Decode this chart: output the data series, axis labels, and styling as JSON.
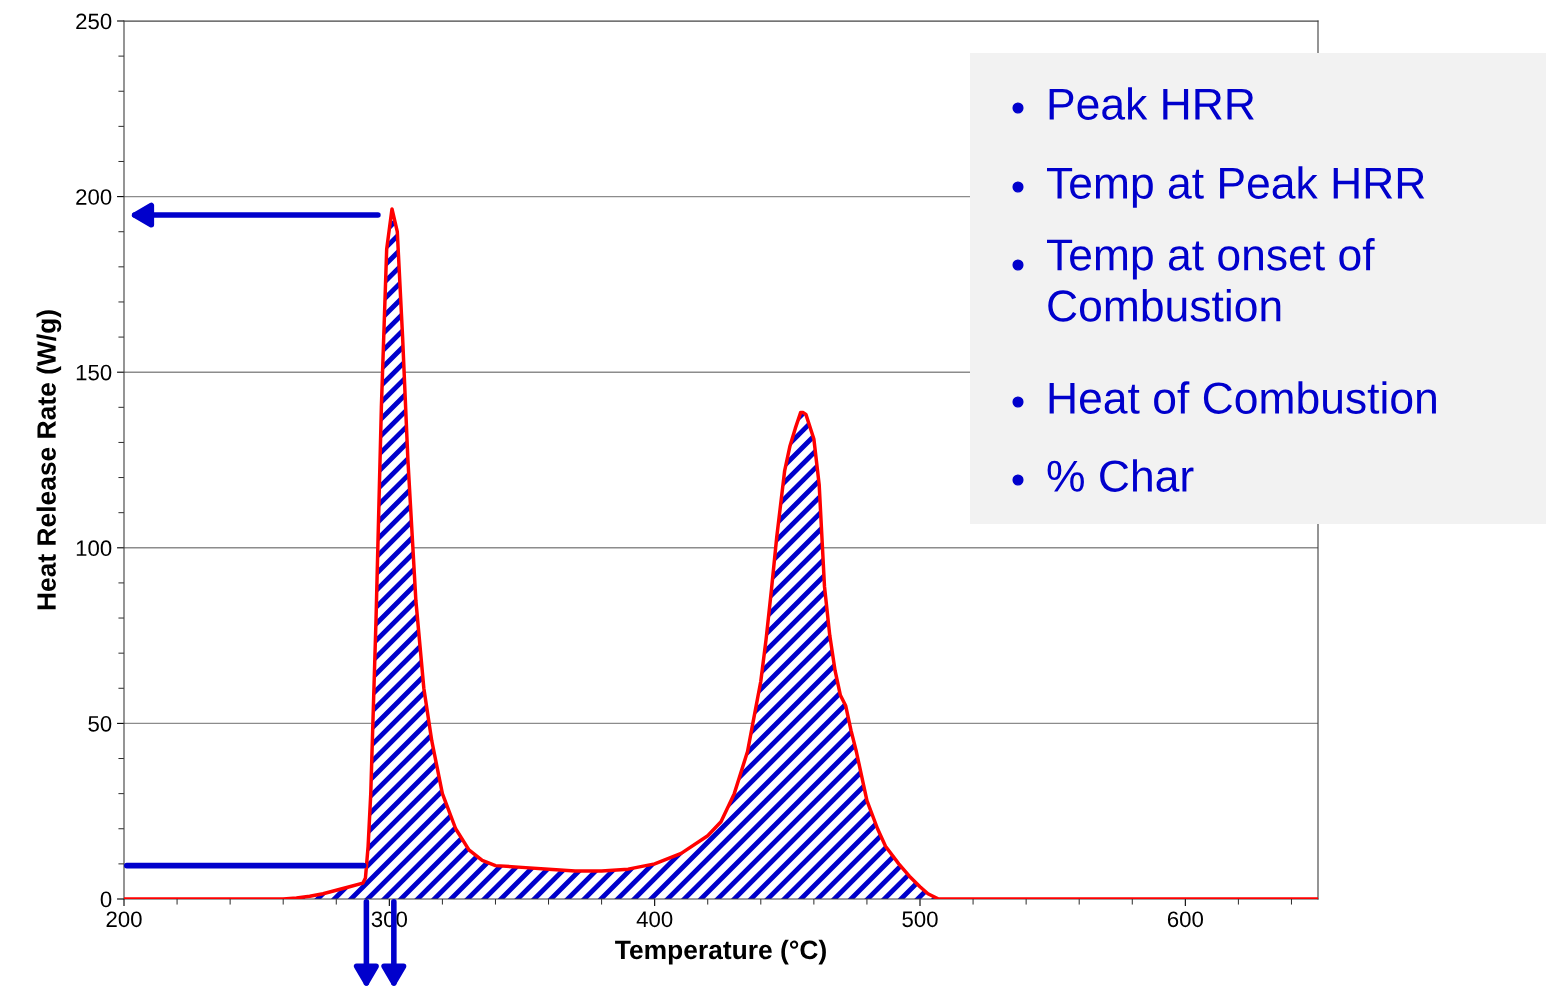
{
  "chart_data": {
    "type": "area",
    "xlabel": "Temperature (°C)",
    "ylabel": "Heat Release Rate (W/g)",
    "x": [
      200,
      220,
      240,
      260,
      265,
      270,
      275,
      280,
      285,
      290,
      291,
      292,
      293,
      295,
      297,
      299,
      301,
      303,
      305,
      307,
      310,
      313,
      316,
      320,
      325,
      330,
      335,
      340,
      350,
      360,
      370,
      380,
      390,
      400,
      410,
      420,
      425,
      430,
      435,
      437,
      440,
      442,
      444,
      446,
      449,
      451,
      453,
      455,
      456,
      457,
      460,
      462,
      464,
      466,
      468,
      470,
      472,
      474,
      476,
      480,
      484,
      487,
      492,
      496,
      500,
      503,
      507,
      550,
      600,
      650
    ],
    "series": [
      {
        "color": "#ff0000",
        "values": [
          0,
          0,
          0,
          0,
          0.3,
          0.8,
          1.5,
          2.5,
          3.5,
          4.5,
          6,
          15,
          30,
          80,
          140,
          185,
          196.5,
          190,
          160,
          125,
          85,
          60,
          45,
          30,
          20,
          14,
          11,
          9.5,
          9,
          8.5,
          8,
          8,
          8.5,
          10,
          13,
          18,
          22,
          30,
          42,
          50,
          62,
          74,
          88,
          103,
          122,
          129,
          134,
          138.5,
          138.5,
          138,
          131,
          118,
          89,
          75,
          65,
          58,
          55,
          48,
          42,
          28,
          20,
          15,
          10,
          6.5,
          3.5,
          1.5,
          0,
          0,
          0,
          0
        ]
      }
    ],
    "xlim": [
      200,
      650
    ],
    "xticks": [
      200,
      300,
      400,
      500,
      600
    ],
    "ylim": [
      0,
      250
    ],
    "yticks": [
      0,
      50,
      100,
      150,
      200,
      250
    ],
    "grid": "y",
    "annotations": [
      "Peak HRR",
      "Temp at Peak HRR",
      "Temp at onset of\nCombustion",
      "Heat of Combustion",
      "% Char"
    ]
  }
}
